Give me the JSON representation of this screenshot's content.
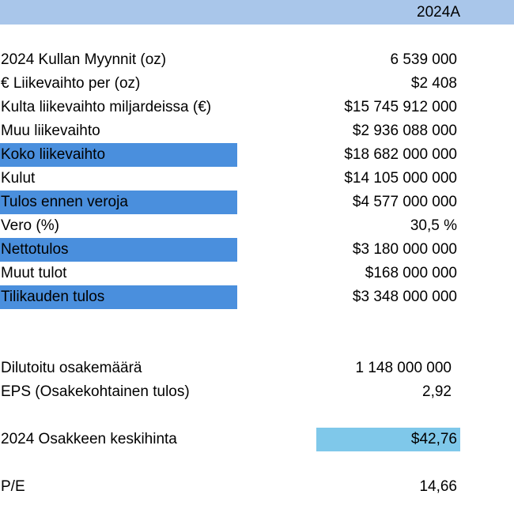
{
  "header": {
    "year": "2024A"
  },
  "income": [
    {
      "label": "2024 Kullan Myynnit (oz)",
      "value": "6 539 000",
      "highlight": false
    },
    {
      "label": "€ Liikevaihto per (oz)",
      "value": "$2 408",
      "highlight": false
    },
    {
      "label": "Kulta liikevaihto miljardeissa (€)",
      "value": "$15 745 912 000",
      "highlight": false
    },
    {
      "label": "Muu liikevaihto",
      "value": "$2 936 088 000",
      "highlight": false
    },
    {
      "label": "Koko liikevaihto",
      "value": "$18 682 000 000",
      "highlight": true
    },
    {
      "label": "Kulut",
      "value": "$14 105 000 000",
      "highlight": false
    },
    {
      "label": "Tulos ennen veroja",
      "value": "$4 577 000 000",
      "highlight": true
    },
    {
      "label": "Vero (%)",
      "value": "30,5 %",
      "highlight": false
    },
    {
      "label": "Nettotulos",
      "value": "$3 180 000 000",
      "highlight": true
    },
    {
      "label": "Muut tulot",
      "value": "$168 000 000",
      "highlight": false
    },
    {
      "label": "Tilikauden tulos",
      "value": "$3 348 000 000",
      "highlight": true
    }
  ],
  "shares": {
    "diluted_label": "Dilutoitu osakemäärä",
    "diluted_value": "1 148 000 000",
    "eps_label": "EPS (Osakekohtainen tulos)",
    "eps_value": "2,92"
  },
  "price": {
    "label": "2024 Osakkeen keskihinta",
    "value": "$42,76"
  },
  "pe": {
    "label": "P/E",
    "value": "14,66"
  },
  "colors": {
    "header_band": "#a9c6ea",
    "row_highlight": "#4a8fdd",
    "price_highlight": "#7fc8ea"
  }
}
